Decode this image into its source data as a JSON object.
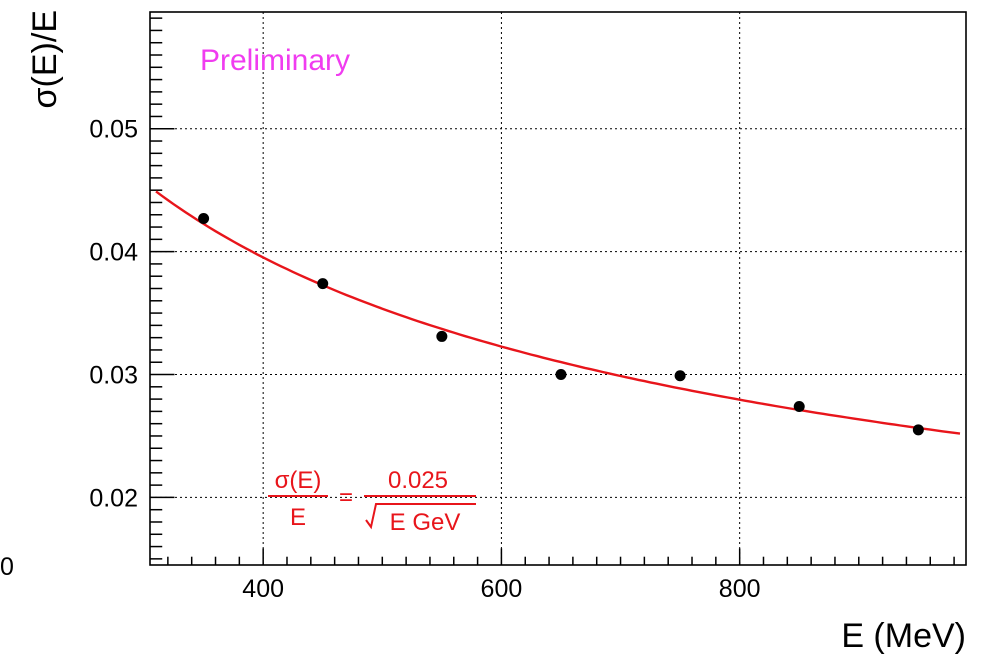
{
  "chart_data": {
    "type": "scatter",
    "xlabel": "E (MeV)",
    "ylabel": "σ(E)/E",
    "xlim": [
      305,
      990
    ],
    "ylim": [
      0.0145,
      0.0595
    ],
    "x_ticks": [
      400,
      600,
      800
    ],
    "y_ticks": [
      0.02,
      0.03,
      0.04,
      0.05
    ],
    "x_tick_labels": [
      "400",
      "600",
      "800"
    ],
    "y_tick_labels": [
      "0.02",
      "0.03",
      "0.04",
      "0.05"
    ],
    "clipped_tick_label": "0",
    "grid": true,
    "series": [
      {
        "marker": "circle",
        "x": [
          350,
          450,
          550,
          650,
          750,
          850,
          950
        ],
        "y": [
          0.0427,
          0.0374,
          0.0331,
          0.03,
          0.0299,
          0.0274,
          0.0255
        ]
      }
    ],
    "fit": {
      "function": "a/sqrt(E)",
      "a": 0.025,
      "xrange": [
        310,
        985
      ],
      "color": "#e8151b"
    },
    "annotations": {
      "preliminary": "Preliminary",
      "preliminary_color": "#f03cf0",
      "formula_lhs_num": "σ(E)",
      "formula_lhs_den": "E",
      "formula_eq": "=",
      "formula_rhs_num": "0.025",
      "formula_rhs_den": "E GeV",
      "formula_color": "#e8151b"
    }
  }
}
